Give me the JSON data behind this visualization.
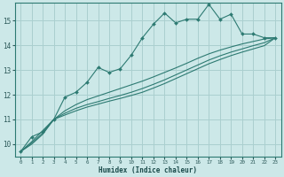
{
  "xlabel": "Humidex (Indice chaleur)",
  "background_color": "#cce8e8",
  "grid_color": "#aacfcf",
  "line_color": "#2d7a72",
  "xlim": [
    -0.5,
    23.5
  ],
  "ylim": [
    9.5,
    15.7
  ],
  "xticks": [
    0,
    1,
    2,
    3,
    4,
    5,
    6,
    7,
    8,
    9,
    10,
    11,
    12,
    13,
    14,
    15,
    16,
    17,
    18,
    19,
    20,
    21,
    22,
    23
  ],
  "yticks": [
    10,
    11,
    12,
    13,
    14,
    15
  ],
  "lines": [
    {
      "x": [
        0,
        1,
        2,
        3,
        4,
        5,
        6,
        7,
        8,
        9,
        10,
        11,
        12,
        13,
        14,
        15,
        16,
        17,
        18,
        19,
        20,
        21,
        22,
        23
      ],
      "y": [
        9.7,
        10.3,
        10.5,
        11.0,
        11.9,
        12.1,
        12.5,
        13.1,
        12.9,
        13.05,
        13.6,
        14.3,
        14.85,
        15.3,
        14.9,
        15.05,
        15.05,
        15.65,
        15.05,
        15.25,
        14.45,
        14.45,
        14.3,
        14.3
      ],
      "has_markers": true
    },
    {
      "x": [
        0,
        3,
        23
      ],
      "y": [
        9.7,
        11.0,
        14.3
      ],
      "has_markers": false,
      "smooth": true,
      "smooth_x": [
        0,
        1,
        2,
        3,
        4,
        5,
        6,
        7,
        8,
        9,
        10,
        11,
        12,
        13,
        14,
        15,
        16,
        17,
        18,
        19,
        20,
        21,
        22,
        23
      ],
      "smooth_y": [
        9.7,
        10.1,
        10.55,
        11.0,
        11.35,
        11.6,
        11.8,
        11.95,
        12.1,
        12.25,
        12.4,
        12.55,
        12.72,
        12.9,
        13.08,
        13.27,
        13.47,
        13.65,
        13.8,
        13.93,
        14.05,
        14.15,
        14.25,
        14.3
      ]
    },
    {
      "x": [
        0,
        3,
        23
      ],
      "y": [
        9.7,
        11.0,
        14.3
      ],
      "has_markers": false,
      "smooth": true,
      "smooth_x": [
        0,
        1,
        2,
        3,
        4,
        5,
        6,
        7,
        8,
        9,
        10,
        11,
        12,
        13,
        14,
        15,
        16,
        17,
        18,
        19,
        20,
        21,
        22,
        23
      ],
      "smooth_y": [
        9.7,
        10.05,
        10.45,
        11.0,
        11.25,
        11.45,
        11.6,
        11.72,
        11.85,
        11.97,
        12.1,
        12.25,
        12.42,
        12.6,
        12.8,
        13.0,
        13.2,
        13.4,
        13.57,
        13.72,
        13.85,
        13.98,
        14.1,
        14.3
      ]
    },
    {
      "x": [
        0,
        3,
        23
      ],
      "y": [
        9.7,
        11.0,
        14.3
      ],
      "has_markers": false,
      "smooth": true,
      "smooth_x": [
        0,
        1,
        2,
        3,
        4,
        5,
        6,
        7,
        8,
        9,
        10,
        11,
        12,
        13,
        14,
        15,
        16,
        17,
        18,
        19,
        20,
        21,
        22,
        23
      ],
      "smooth_y": [
        9.7,
        10.0,
        10.4,
        11.0,
        11.18,
        11.35,
        11.5,
        11.62,
        11.74,
        11.85,
        11.97,
        12.1,
        12.27,
        12.45,
        12.65,
        12.85,
        13.05,
        13.25,
        13.42,
        13.58,
        13.72,
        13.85,
        13.98,
        14.3
      ]
    }
  ]
}
